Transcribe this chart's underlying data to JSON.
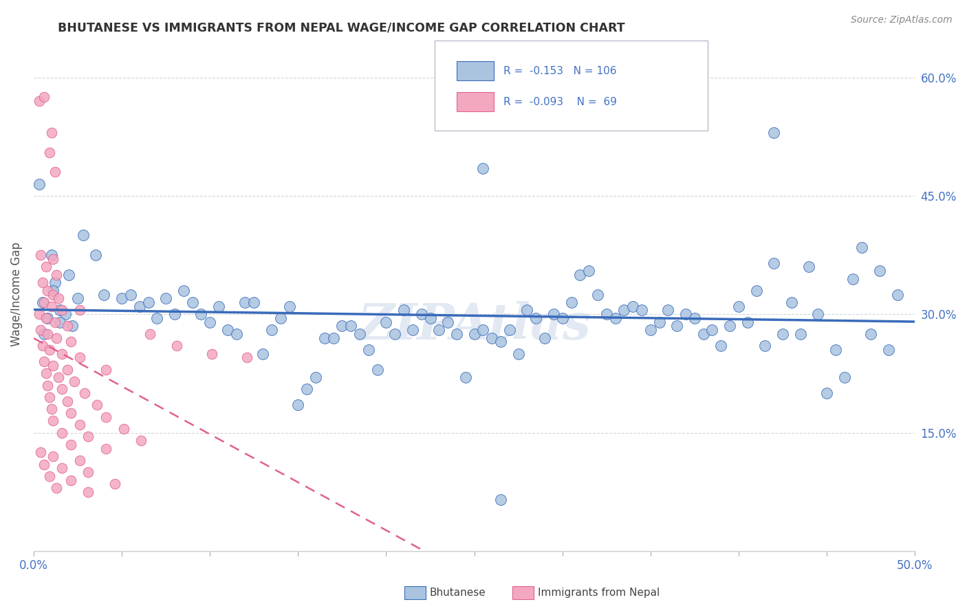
{
  "title": "BHUTANESE VS IMMIGRANTS FROM NEPAL WAGE/INCOME GAP CORRELATION CHART",
  "source": "Source: ZipAtlas.com",
  "ylabel": "Wage/Income Gap",
  "legend_label1": "Bhutanese",
  "legend_label2": "Immigrants from Nepal",
  "r1": "-0.153",
  "n1": "106",
  "r2": "-0.093",
  "n2": "69",
  "color_blue": "#aac4e0",
  "color_pink": "#f4a8c0",
  "color_line_blue": "#3a6bba",
  "color_line_pink": "#e06090",
  "color_axis_text": "#4472c4",
  "watermark": "ZIPAtlas",
  "blue_points": [
    [
      0.5,
      31.5
    ],
    [
      1.0,
      37.5
    ],
    [
      1.5,
      30.5
    ],
    [
      2.0,
      35.0
    ],
    [
      2.5,
      32.0
    ],
    [
      1.2,
      34.0
    ],
    [
      1.8,
      30.0
    ],
    [
      0.8,
      29.5
    ],
    [
      1.5,
      29.0
    ],
    [
      2.2,
      28.5
    ],
    [
      0.6,
      27.5
    ],
    [
      1.1,
      33.0
    ],
    [
      2.8,
      40.0
    ],
    [
      3.5,
      37.5
    ],
    [
      4.0,
      32.5
    ],
    [
      5.0,
      32.0
    ],
    [
      5.5,
      32.5
    ],
    [
      6.0,
      31.0
    ],
    [
      6.5,
      31.5
    ],
    [
      7.0,
      29.5
    ],
    [
      7.5,
      32.0
    ],
    [
      8.0,
      30.0
    ],
    [
      8.5,
      33.0
    ],
    [
      9.0,
      31.5
    ],
    [
      9.5,
      30.0
    ],
    [
      10.0,
      29.0
    ],
    [
      10.5,
      31.0
    ],
    [
      11.0,
      28.0
    ],
    [
      11.5,
      27.5
    ],
    [
      12.0,
      31.5
    ],
    [
      12.5,
      31.5
    ],
    [
      13.0,
      25.0
    ],
    [
      13.5,
      28.0
    ],
    [
      14.0,
      29.5
    ],
    [
      14.5,
      31.0
    ],
    [
      15.0,
      18.5
    ],
    [
      15.5,
      20.5
    ],
    [
      16.0,
      22.0
    ],
    [
      16.5,
      27.0
    ],
    [
      17.0,
      27.0
    ],
    [
      17.5,
      28.5
    ],
    [
      18.0,
      28.5
    ],
    [
      18.5,
      27.5
    ],
    [
      19.0,
      25.5
    ],
    [
      19.5,
      23.0
    ],
    [
      20.0,
      29.0
    ],
    [
      20.5,
      27.5
    ],
    [
      21.0,
      30.5
    ],
    [
      21.5,
      28.0
    ],
    [
      22.0,
      30.0
    ],
    [
      22.5,
      29.5
    ],
    [
      23.0,
      28.0
    ],
    [
      23.5,
      29.0
    ],
    [
      24.0,
      27.5
    ],
    [
      24.5,
      22.0
    ],
    [
      25.0,
      27.5
    ],
    [
      25.5,
      28.0
    ],
    [
      26.0,
      27.0
    ],
    [
      26.5,
      26.5
    ],
    [
      27.0,
      28.0
    ],
    [
      27.5,
      25.0
    ],
    [
      28.0,
      30.5
    ],
    [
      28.5,
      29.5
    ],
    [
      29.0,
      27.0
    ],
    [
      29.5,
      30.0
    ],
    [
      30.0,
      29.5
    ],
    [
      30.5,
      31.5
    ],
    [
      31.0,
      35.0
    ],
    [
      31.5,
      35.5
    ],
    [
      32.0,
      32.5
    ],
    [
      32.5,
      30.0
    ],
    [
      33.0,
      29.5
    ],
    [
      33.5,
      30.5
    ],
    [
      34.0,
      31.0
    ],
    [
      34.5,
      30.5
    ],
    [
      35.0,
      28.0
    ],
    [
      35.5,
      29.0
    ],
    [
      36.0,
      30.5
    ],
    [
      36.5,
      28.5
    ],
    [
      37.0,
      30.0
    ],
    [
      37.5,
      29.5
    ],
    [
      38.0,
      27.5
    ],
    [
      38.5,
      28.0
    ],
    [
      39.0,
      26.0
    ],
    [
      39.5,
      28.5
    ],
    [
      40.0,
      31.0
    ],
    [
      40.5,
      29.0
    ],
    [
      41.0,
      33.0
    ],
    [
      41.5,
      26.0
    ],
    [
      42.0,
      36.5
    ],
    [
      42.5,
      27.5
    ],
    [
      43.0,
      31.5
    ],
    [
      43.5,
      27.5
    ],
    [
      44.0,
      36.0
    ],
    [
      44.5,
      30.0
    ],
    [
      45.0,
      20.0
    ],
    [
      45.5,
      25.5
    ],
    [
      46.0,
      22.0
    ],
    [
      46.5,
      34.5
    ],
    [
      47.0,
      38.5
    ],
    [
      47.5,
      27.5
    ],
    [
      48.0,
      35.5
    ],
    [
      48.5,
      25.5
    ],
    [
      49.0,
      32.5
    ],
    [
      0.3,
      46.5
    ],
    [
      25.5,
      48.5
    ],
    [
      42.0,
      53.0
    ],
    [
      26.5,
      6.5
    ]
  ],
  "pink_points": [
    [
      0.3,
      57.0
    ],
    [
      0.6,
      57.5
    ],
    [
      1.0,
      53.0
    ],
    [
      0.9,
      50.5
    ],
    [
      1.2,
      48.0
    ],
    [
      0.4,
      37.5
    ],
    [
      0.7,
      36.0
    ],
    [
      1.3,
      35.0
    ],
    [
      0.5,
      34.0
    ],
    [
      0.8,
      33.0
    ],
    [
      1.1,
      32.5
    ],
    [
      1.4,
      32.0
    ],
    [
      0.6,
      31.5
    ],
    [
      1.0,
      31.0
    ],
    [
      1.6,
      30.5
    ],
    [
      0.3,
      30.0
    ],
    [
      0.7,
      29.5
    ],
    [
      1.2,
      29.0
    ],
    [
      1.9,
      28.5
    ],
    [
      0.4,
      28.0
    ],
    [
      0.8,
      27.5
    ],
    [
      1.3,
      27.0
    ],
    [
      2.1,
      26.5
    ],
    [
      0.5,
      26.0
    ],
    [
      0.9,
      25.5
    ],
    [
      1.6,
      25.0
    ],
    [
      2.6,
      24.5
    ],
    [
      0.6,
      24.0
    ],
    [
      1.1,
      23.5
    ],
    [
      1.9,
      23.0
    ],
    [
      0.7,
      22.5
    ],
    [
      1.4,
      22.0
    ],
    [
      2.3,
      21.5
    ],
    [
      0.8,
      21.0
    ],
    [
      1.6,
      20.5
    ],
    [
      2.9,
      20.0
    ],
    [
      0.9,
      19.5
    ],
    [
      1.9,
      19.0
    ],
    [
      3.6,
      18.5
    ],
    [
      1.0,
      18.0
    ],
    [
      2.1,
      17.5
    ],
    [
      4.1,
      17.0
    ],
    [
      1.1,
      16.5
    ],
    [
      2.6,
      16.0
    ],
    [
      5.1,
      15.5
    ],
    [
      1.6,
      15.0
    ],
    [
      3.1,
      14.5
    ],
    [
      6.1,
      14.0
    ],
    [
      2.1,
      13.5
    ],
    [
      4.1,
      13.0
    ],
    [
      0.4,
      12.5
    ],
    [
      1.1,
      12.0
    ],
    [
      2.6,
      11.5
    ],
    [
      0.6,
      11.0
    ],
    [
      1.6,
      10.5
    ],
    [
      3.1,
      10.0
    ],
    [
      0.9,
      9.5
    ],
    [
      2.1,
      9.0
    ],
    [
      4.6,
      8.5
    ],
    [
      1.3,
      8.0
    ],
    [
      3.1,
      7.5
    ],
    [
      6.6,
      27.5
    ],
    [
      8.1,
      26.0
    ],
    [
      10.1,
      25.0
    ],
    [
      12.1,
      24.5
    ],
    [
      1.1,
      37.0
    ],
    [
      2.6,
      30.5
    ],
    [
      4.1,
      23.0
    ]
  ],
  "xlim": [
    0,
    50
  ],
  "ylim": [
    0,
    65
  ],
  "ytick_vals": [
    0,
    15,
    30,
    45,
    60
  ],
  "ytick_labels": [
    "",
    "15.0%",
    "30.0%",
    "45.0%",
    "60.0%"
  ],
  "background_color": "#ffffff",
  "grid_color": "#cccccc",
  "title_color": "#333333"
}
